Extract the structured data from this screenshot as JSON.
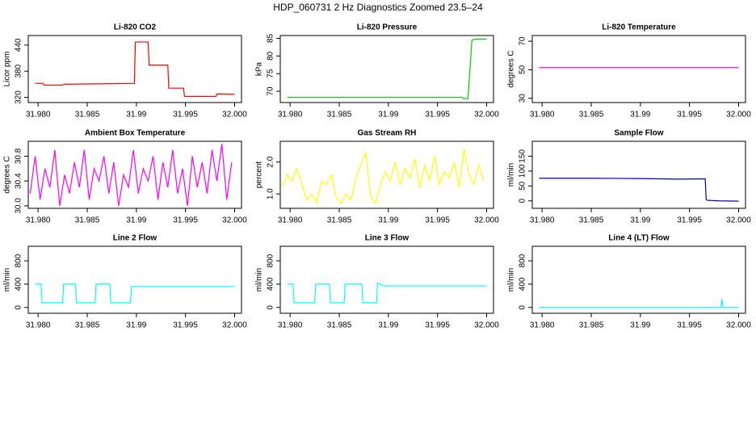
{
  "title": "HDP_060731  2 Hz Diagnostics Zoomed 23.5–24",
  "chart_data": [
    {
      "type": "line",
      "title": "Li-820 CO2",
      "ylabel": "Licor ppm",
      "color": "#ff0000",
      "x": [
        31.9797,
        31.9805,
        31.9806,
        31.9825,
        31.9826,
        31.9898,
        31.9899,
        31.9912,
        31.9913,
        31.9932,
        31.9933,
        31.9948,
        31.9949,
        31.9981,
        31.9982,
        32.0
      ],
      "values": [
        352,
        352,
        348,
        348,
        350,
        352,
        447,
        447,
        394,
        394,
        341,
        341,
        322,
        322,
        328,
        327
      ],
      "xlim": [
        31.979,
        32.0007
      ],
      "ylim": [
        308,
        462
      ],
      "xticks": [
        {
          "value": 31.98,
          "label": "31.980"
        },
        31.985,
        31.99,
        31.995,
        {
          "value": 32,
          "label": "32.000"
        }
      ],
      "yticks": [
        320,
        380,
        440
      ]
    },
    {
      "type": "line",
      "title": "Li-820 Pressure",
      "ylabel": "kPa",
      "color": "#00cd00",
      "x": [
        31.9797,
        31.9975,
        31.9976,
        31.9981,
        31.9983,
        31.9985,
        31.9988,
        32.0
      ],
      "values": [
        68.3,
        68.3,
        67.9,
        67.9,
        76,
        84.5,
        84.8,
        84.8
      ],
      "xlim": [
        31.979,
        32.0007
      ],
      "ylim": [
        66.8,
        85.8
      ],
      "xticks": [
        {
          "value": 31.98,
          "label": "31.980"
        },
        31.985,
        31.99,
        31.995,
        {
          "value": 32,
          "label": "32.000"
        }
      ],
      "yticks": [
        70,
        75,
        80,
        85
      ]
    },
    {
      "type": "line",
      "title": "Li-820 Temperature",
      "ylabel": "degrees C",
      "color": "#ff00ff",
      "x": [
        31.9797,
        32.0
      ],
      "values": [
        51.5,
        51.5
      ],
      "xlim": [
        31.979,
        32.0007
      ],
      "ylim": [
        27,
        74
      ],
      "xticks": [
        {
          "value": 31.98,
          "label": "31.980"
        },
        31.985,
        31.99,
        31.995,
        {
          "value": 32,
          "label": "32.000"
        }
      ],
      "yticks": [
        30,
        50,
        70
      ]
    },
    {
      "type": "line",
      "title": "Ambient Box Temperature",
      "ylabel": "degrees C",
      "color": "#ff00ff",
      "x": [
        31.9792,
        31.9797,
        31.9802,
        31.9807,
        31.9812,
        31.9817,
        31.9822,
        31.9827,
        31.9832,
        31.9837,
        31.9842,
        31.9847,
        31.9852,
        31.9857,
        31.9862,
        31.9867,
        31.9872,
        31.9877,
        31.9882,
        31.9887,
        31.9892,
        31.9897,
        31.9902,
        31.9907,
        31.9912,
        31.9917,
        31.9922,
        31.9927,
        31.9932,
        31.9937,
        31.9942,
        31.9947,
        31.9952,
        31.9957,
        31.9962,
        31.9967,
        31.9972,
        31.9977,
        31.9982,
        31.9987,
        31.9992,
        31.9997
      ],
      "values": [
        30.2,
        30.8,
        30.1,
        30.6,
        30.3,
        30.9,
        30.0,
        30.5,
        30.2,
        30.7,
        30.3,
        30.9,
        30.1,
        30.6,
        30.4,
        30.8,
        30.2,
        30.7,
        30.0,
        30.5,
        30.3,
        30.9,
        30.2,
        30.6,
        30.4,
        30.8,
        30.1,
        30.7,
        30.3,
        30.9,
        30.2,
        30.6,
        30.0,
        30.8,
        30.3,
        30.7,
        30.2,
        30.9,
        30.4,
        31.0,
        30.1,
        30.7
      ],
      "xlim": [
        31.979,
        32.0007
      ],
      "ylim": [
        29.96,
        31.04
      ],
      "xticks": [
        {
          "value": 31.98,
          "label": "31.980"
        },
        31.985,
        31.99,
        31.995,
        {
          "value": 32,
          "label": "32.000"
        }
      ],
      "yticks": [
        {
          "value": 30,
          "label": "30.0"
        },
        30.4,
        30.8
      ]
    },
    {
      "type": "line",
      "title": "Gas Stream RH",
      "ylabel": "percent",
      "color": "#ffff00",
      "x": [
        31.9792,
        31.9797,
        31.9802,
        31.9807,
        31.9812,
        31.9817,
        31.9822,
        31.9827,
        31.9832,
        31.9837,
        31.9842,
        31.9847,
        31.9852,
        31.9857,
        31.9862,
        31.9867,
        31.9872,
        31.9877,
        31.9882,
        31.9887,
        31.9892,
        31.9897,
        31.9902,
        31.9907,
        31.9912,
        31.9917,
        31.9922,
        31.9927,
        31.9932,
        31.9937,
        31.9942,
        31.9947,
        31.9952,
        31.9957,
        31.9962,
        31.9967,
        31.9972,
        31.9977,
        31.9982,
        31.9987,
        31.9992,
        31.9997
      ],
      "values": [
        1.2,
        1.6,
        1.4,
        1.8,
        1.3,
        0.8,
        1.0,
        0.7,
        1.4,
        1.3,
        1.6,
        0.9,
        0.7,
        1.0,
        0.8,
        1.5,
        1.9,
        2.3,
        0.9,
        0.7,
        1.3,
        1.7,
        1.4,
        2.0,
        1.3,
        1.8,
        1.5,
        2.1,
        1.2,
        1.9,
        1.4,
        2.2,
        1.3,
        1.7,
        1.5,
        2.0,
        1.2,
        2.4,
        1.6,
        1.3,
        1.9,
        1.4
      ],
      "xlim": [
        31.979,
        32.0007
      ],
      "ylim": [
        0.55,
        2.65
      ],
      "xticks": [
        {
          "value": 31.98,
          "label": "31.980"
        },
        31.985,
        31.99,
        31.995,
        {
          "value": 32,
          "label": "32.000"
        }
      ],
      "yticks": [
        {
          "value": 1,
          "label": "1.0"
        },
        {
          "value": 2,
          "label": "2.0"
        }
      ]
    },
    {
      "type": "line",
      "title": "Sample Flow",
      "ylabel": "ml/min",
      "color": "#0000cd",
      "x": [
        31.9797,
        31.985,
        31.99,
        31.994,
        31.9966,
        31.9967,
        31.9968,
        31.998,
        32.0
      ],
      "values": [
        76,
        76,
        75,
        73,
        74,
        5,
        2,
        0,
        -1
      ],
      "xlim": [
        31.979,
        32.0007
      ],
      "ylim": [
        -25,
        200
      ],
      "xticks": [
        {
          "value": 31.98,
          "label": "31.980"
        },
        31.985,
        31.99,
        31.995,
        {
          "value": 32,
          "label": "32.000"
        }
      ],
      "yticks": [
        0,
        50,
        100,
        150
      ]
    },
    {
      "type": "line",
      "title": "Line 2 Flow",
      "ylabel": "ml/min",
      "color": "#00ffff",
      "x": [
        31.9797,
        31.9803,
        31.9804,
        31.9825,
        31.9826,
        31.9838,
        31.9839,
        31.9858,
        31.9859,
        31.9873,
        31.9874,
        31.9894,
        31.9895,
        32.0
      ],
      "values": [
        400,
        400,
        80,
        80,
        400,
        400,
        80,
        80,
        400,
        400,
        80,
        80,
        360,
        360
      ],
      "xlim": [
        31.979,
        32.0007
      ],
      "ylim": [
        -100,
        1050
      ],
      "xticks": [
        {
          "value": 31.98,
          "label": "31.980"
        },
        31.985,
        31.99,
        31.995,
        {
          "value": 32,
          "label": "32.000"
        }
      ],
      "yticks": [
        0,
        400,
        800
      ]
    },
    {
      "type": "line",
      "title": "Line 3 Flow",
      "ylabel": "ml/min",
      "color": "#00ffff",
      "x": [
        31.9797,
        31.9803,
        31.9804,
        31.9825,
        31.9826,
        31.984,
        31.9841,
        31.9855,
        31.9856,
        31.9873,
        31.9874,
        31.9888,
        31.9889,
        31.9895,
        32.0
      ],
      "values": [
        400,
        400,
        80,
        80,
        400,
        400,
        80,
        80,
        400,
        400,
        80,
        80,
        420,
        370,
        370
      ],
      "xlim": [
        31.979,
        32.0007
      ],
      "ylim": [
        -100,
        1050
      ],
      "xticks": [
        {
          "value": 31.98,
          "label": "31.980"
        },
        31.985,
        31.99,
        31.995,
        {
          "value": 32,
          "label": "32.000"
        }
      ],
      "yticks": [
        0,
        400,
        800
      ]
    },
    {
      "type": "line",
      "title": "Line 4 (LT) Flow",
      "ylabel": "ml/min",
      "color": "#00ffff",
      "x": [
        31.9797,
        31.9982,
        31.9983,
        31.9984,
        31.9985,
        32.0
      ],
      "values": [
        0,
        0,
        150,
        0,
        0,
        0
      ],
      "xlim": [
        31.979,
        32.0007
      ],
      "ylim": [
        -100,
        1050
      ],
      "xticks": [
        {
          "value": 31.98,
          "label": "31.980"
        },
        31.985,
        31.99,
        31.995,
        {
          "value": 32,
          "label": "32.000"
        }
      ],
      "yticks": [
        0,
        400,
        800
      ]
    }
  ]
}
